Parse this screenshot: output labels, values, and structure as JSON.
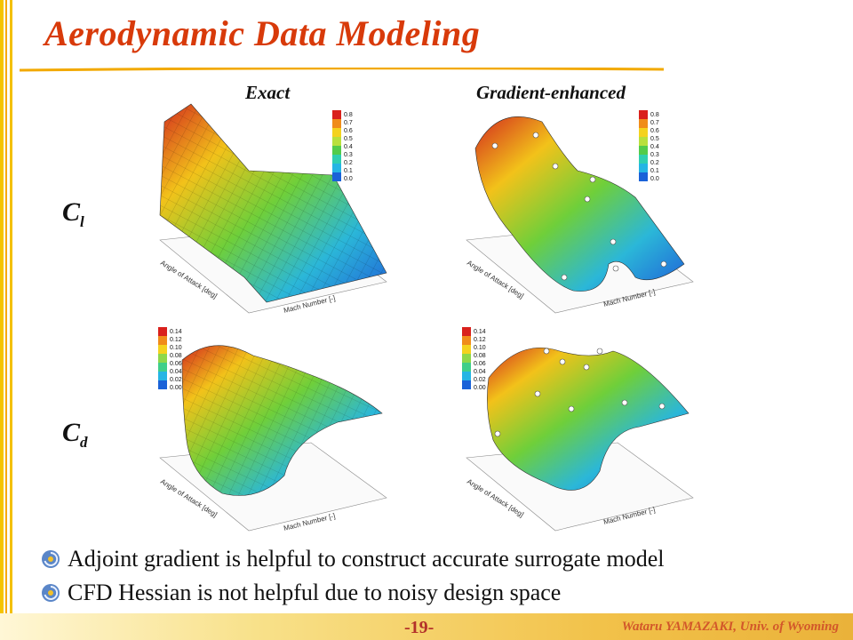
{
  "slide": {
    "title": "Aerodynamic Data Modeling",
    "columns": [
      "Exact",
      "Gradient-enhanced"
    ],
    "rows": [
      {
        "main": "C",
        "sub": "l"
      },
      {
        "main": "C",
        "sub": "d"
      }
    ],
    "axis_labels": {
      "x": "Mach Number [-]",
      "y": "Angle of Attack [deg]"
    },
    "colorbars": {
      "cl": [
        "0.8",
        "0.7",
        "0.6",
        "0.5",
        "0.4",
        "0.3",
        "0.2",
        "0.1",
        "0.0"
      ],
      "cd": [
        "0.14",
        "0.12",
        "0.10",
        "0.08",
        "0.06",
        "0.04",
        "0.02",
        "0.00"
      ]
    },
    "bullets": [
      "Adjoint gradient is helpful to construct accurate surrogate model",
      "CFD Hessian is not helpful due to noisy design space"
    ],
    "page_number": "-19-",
    "credit": "Wataru YAMAZAKI, Univ. of Wyoming"
  },
  "colors": {
    "title": "#d83a0a",
    "accent_bar": "#f5c400",
    "footer": "#eab23a"
  }
}
